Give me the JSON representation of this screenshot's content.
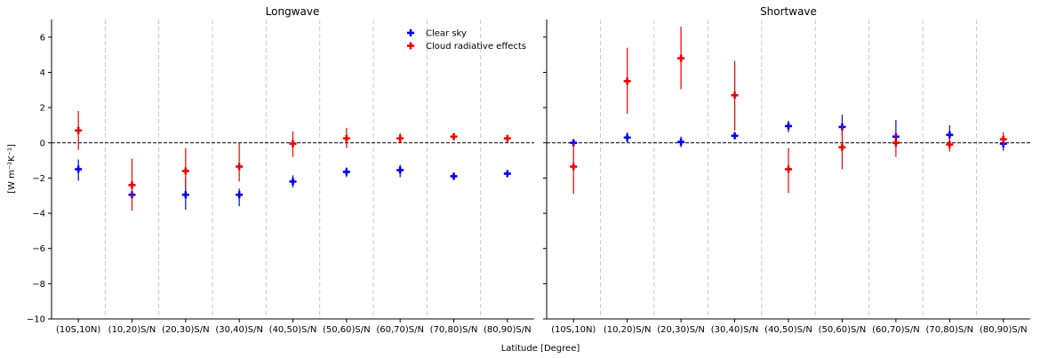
{
  "figure": {
    "ylabel": "[W m⁻²K⁻¹]",
    "xlabel": "Latitude [Degree]"
  },
  "legend": {
    "items": [
      {
        "label": "Clear sky",
        "color": "#0000ee"
      },
      {
        "label": "Cloud radiative effects",
        "color": "#ee0000"
      }
    ]
  },
  "chart_data": [
    {
      "type": "scatter",
      "title": "Longwave",
      "categories": [
        "(10S,10N)",
        "(10,20)S/N",
        "(20,30)S/N",
        "(30,40)S/N",
        "(40,50)S/N",
        "(50,60)S/N",
        "(60,70)S/N",
        "(70,80)S/N",
        "(80,90)S/N"
      ],
      "ylim": [
        -10,
        7
      ],
      "yticks": [
        -10,
        -8,
        -6,
        -4,
        -2,
        0,
        2,
        4,
        6
      ],
      "reference_line": 0,
      "grid": "vertical-dashed",
      "series": [
        {
          "name": "Clear sky",
          "color": "#0000ee",
          "values": [
            -1.5,
            -2.95,
            -2.95,
            -2.95,
            -2.2,
            -1.65,
            -1.55,
            -1.9,
            -1.75
          ],
          "err_low": [
            -2.15,
            -3.0,
            -3.8,
            -3.6,
            -2.55,
            -1.95,
            -1.95,
            -2.1,
            -1.95
          ],
          "err_high": [
            -0.95,
            -2.85,
            -2.05,
            -2.6,
            -1.85,
            -1.4,
            -1.25,
            -1.7,
            -1.6
          ]
        },
        {
          "name": "Cloud radiative effects",
          "color": "#ee0000",
          "values": [
            0.7,
            -2.4,
            -1.6,
            -1.35,
            -0.05,
            0.25,
            0.25,
            0.35,
            0.25
          ],
          "err_low": [
            -0.4,
            -3.85,
            -2.55,
            -2.2,
            -0.8,
            -0.3,
            0.0,
            0.2,
            0.1
          ],
          "err_high": [
            1.8,
            -0.9,
            -0.3,
            0.0,
            0.65,
            0.85,
            0.55,
            0.5,
            0.4
          ]
        }
      ]
    },
    {
      "type": "scatter",
      "title": "Shortwave",
      "categories": [
        "(10S,10N)",
        "(10,20)S/N",
        "(20,30)S/N",
        "(30,40)S/N",
        "(40,50)S/N",
        "(50,60)S/N",
        "(60,70)S/N",
        "(70,80)S/N",
        "(80,90)S/N"
      ],
      "ylim": [
        -10,
        7
      ],
      "reference_line": 0,
      "grid": "vertical-dashed",
      "series": [
        {
          "name": "Clear sky",
          "color": "#0000ee",
          "values": [
            0.0,
            0.3,
            0.05,
            0.4,
            0.95,
            0.9,
            0.35,
            0.45,
            -0.05
          ],
          "err_low": [
            -0.15,
            0.0,
            -0.25,
            0.2,
            0.6,
            0.4,
            -0.15,
            0.05,
            -0.45
          ],
          "err_high": [
            0.2,
            0.6,
            0.35,
            0.6,
            1.25,
            1.6,
            1.3,
            1.0,
            0.2
          ]
        },
        {
          "name": "Cloud radiative effects",
          "color": "#ee0000",
          "values": [
            -1.35,
            3.5,
            4.8,
            2.7,
            -1.5,
            -0.25,
            0.0,
            -0.1,
            0.2
          ],
          "err_low": [
            -2.9,
            1.65,
            3.05,
            0.7,
            -2.85,
            -1.5,
            -0.8,
            -0.5,
            -0.15
          ],
          "err_high": [
            0.0,
            5.4,
            6.6,
            4.65,
            -0.3,
            1.0,
            0.6,
            0.3,
            0.6
          ]
        }
      ]
    }
  ]
}
